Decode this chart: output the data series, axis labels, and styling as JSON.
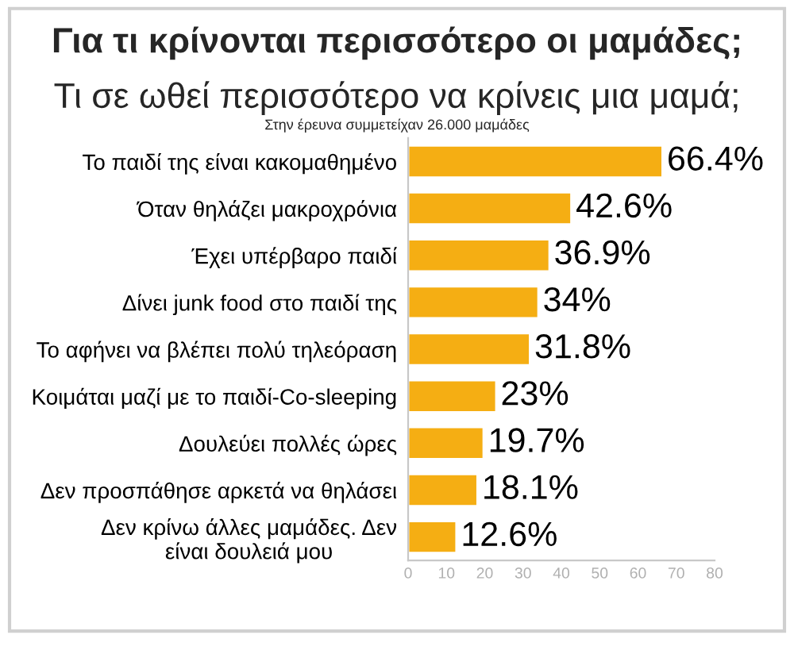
{
  "chart_data": {
    "type": "bar",
    "orientation": "horizontal",
    "title": "Για τι κρίνονται περισσότερο οι μαμάδες;",
    "subtitle": "Τι σε ωθεί περισσότερο να κρίνεις μια μαμά;",
    "annotations": [
      "Στην έρευνα συμμετείχαν 26.000 μαμάδες"
    ],
    "categories": [
      "Το παιδί της είναι κακομαθημένο",
      "Όταν θηλάζει μακροχρόνια",
      "Έχει υπέρβαρο παιδί",
      "Δίνει junk food στο παιδί της",
      "Το αφήνει να βλέπει πολύ τηλεόραση",
      "Κοιμάται μαζί με το παιδί-Co-sleeping",
      "Δουλεύει πολλές ώρες",
      "Δεν προσπάθησε αρκετά να θηλάσει",
      "Δεν κρίνω άλλες μαμάδες. Δεν\nείναι δουλειά μου"
    ],
    "values": [
      66.4,
      42.6,
      36.9,
      34,
      31.8,
      23,
      19.7,
      18.1,
      12.6
    ],
    "value_labels": [
      "66.4%",
      "42.6%",
      "36.9%",
      "34%",
      "31.8%",
      "23%",
      "19.7%",
      "18.1%",
      "12.6%"
    ],
    "color": "#f5ae13",
    "xlim": [
      0,
      80
    ],
    "xticks": [
      0,
      10,
      20,
      30,
      40,
      50,
      60,
      70,
      80
    ]
  }
}
